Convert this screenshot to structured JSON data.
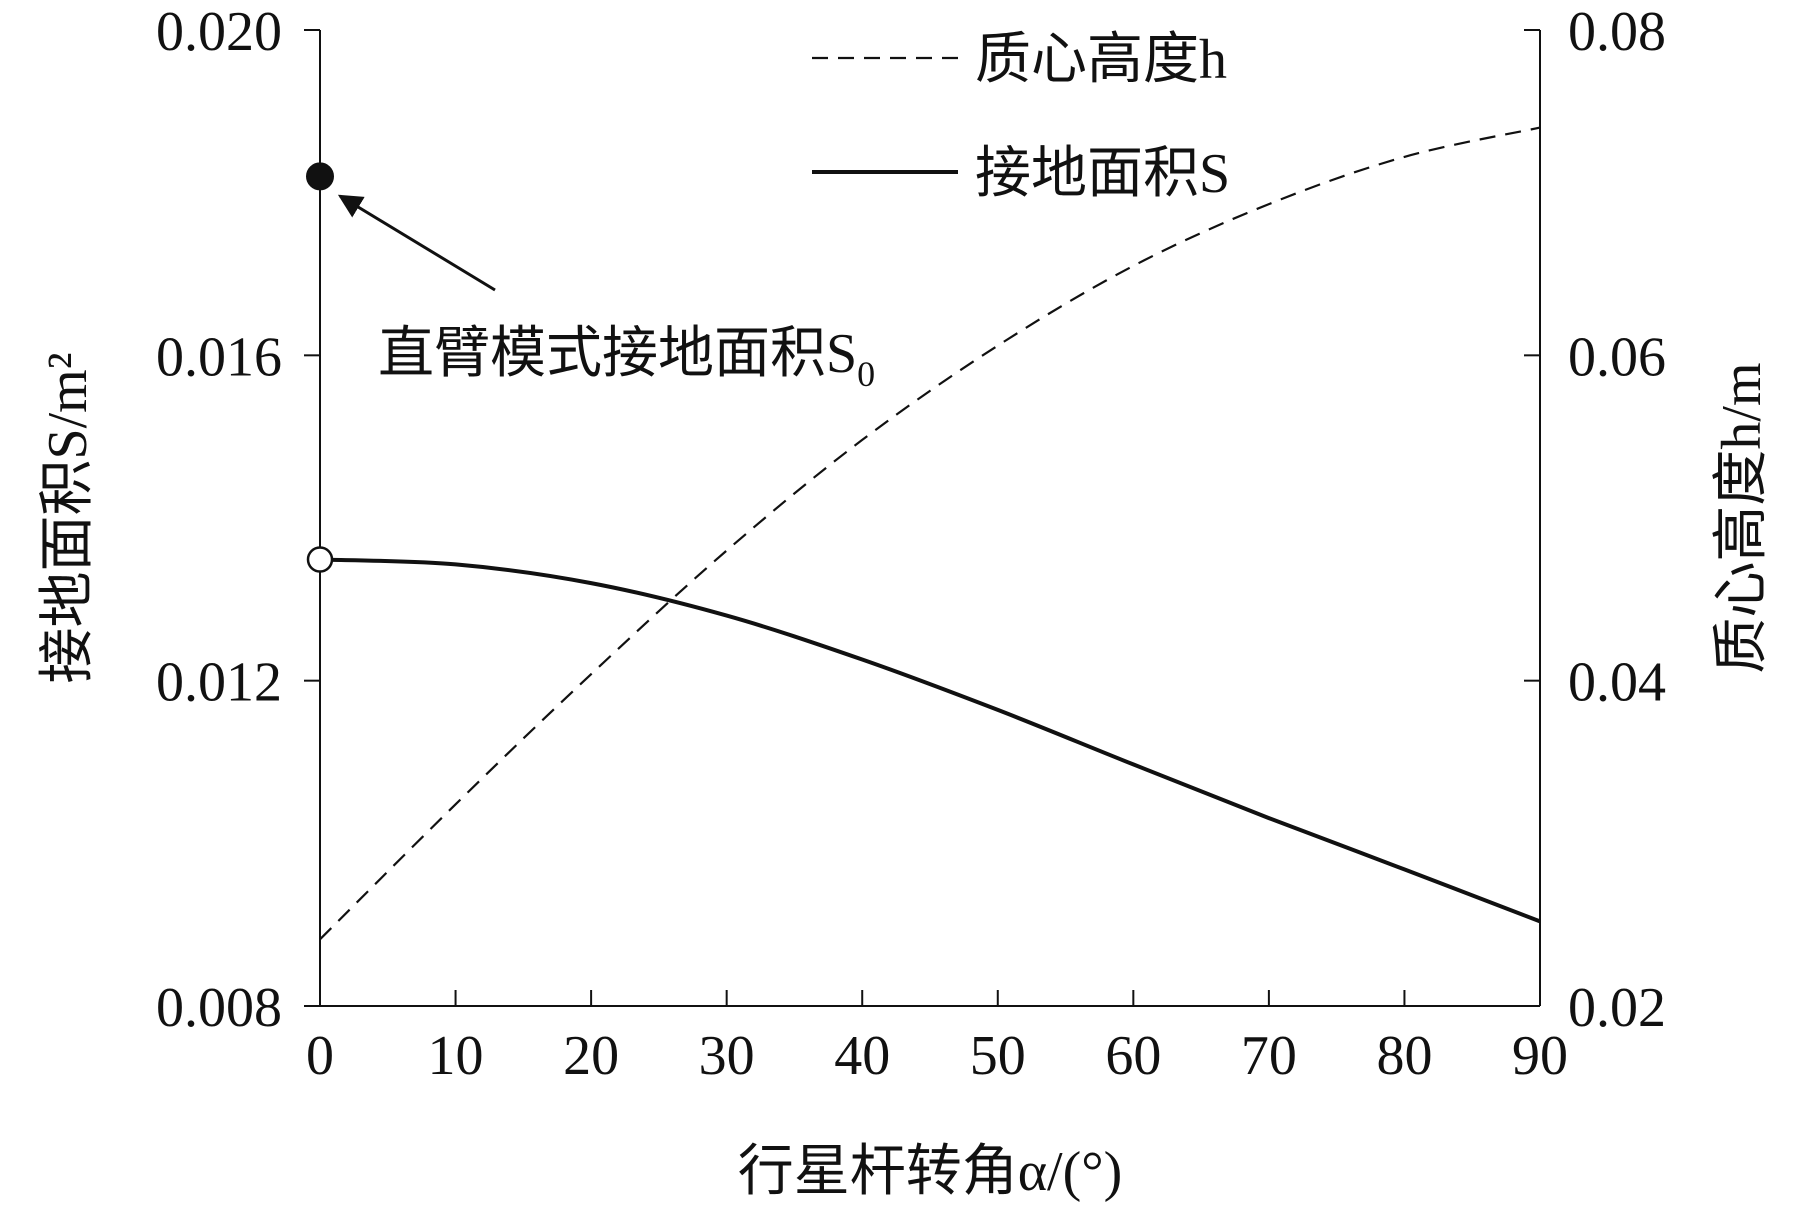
{
  "chart_data": {
    "type": "line",
    "xlabel": "行星杆转角α/(°)",
    "ylabel_left": "接地面积S/m²",
    "ylabel_right": "质心高度h/m",
    "xlim": [
      0,
      90
    ],
    "ylim_left": [
      0.008,
      0.02
    ],
    "ylim_right": [
      0.02,
      0.08
    ],
    "x_ticks": [
      "0",
      "10",
      "20",
      "30",
      "40",
      "50",
      "60",
      "70",
      "80",
      "90"
    ],
    "y_left_ticks": [
      "0.008",
      "0.012",
      "0.016",
      "0.020"
    ],
    "y_right_ticks": [
      "0.02",
      "0.04",
      "0.06",
      "0.08"
    ],
    "grid": false,
    "legend_position": "top-right",
    "series": [
      {
        "name": "质心高度h",
        "axis": "right",
        "style": "dashed",
        "x": [
          0,
          10,
          20,
          30,
          40,
          50,
          60,
          70,
          80,
          90
        ],
        "y": [
          0.0241,
          0.0324,
          0.0404,
          0.048,
          0.0548,
          0.0606,
          0.0655,
          0.0693,
          0.0722,
          0.074
        ]
      },
      {
        "name": "接地面积S",
        "axis": "left",
        "style": "solid",
        "x": [
          0,
          10,
          20,
          30,
          40,
          50,
          60,
          70,
          80,
          90
        ],
        "y": [
          0.01349,
          0.01343,
          0.0132,
          0.0128,
          0.01226,
          0.01164,
          0.01097,
          0.01031,
          0.00968,
          0.00904
        ]
      }
    ],
    "annotations": [
      {
        "label": "直臂模式接地面积S",
        "subscript": "0",
        "point": {
          "x": 0,
          "y": 0.0182,
          "axis": "left",
          "marker": "filled-circle"
        }
      },
      {
        "point": {
          "x": 0,
          "y": 0.01349,
          "axis": "left",
          "marker": "open-circle"
        }
      }
    ]
  }
}
